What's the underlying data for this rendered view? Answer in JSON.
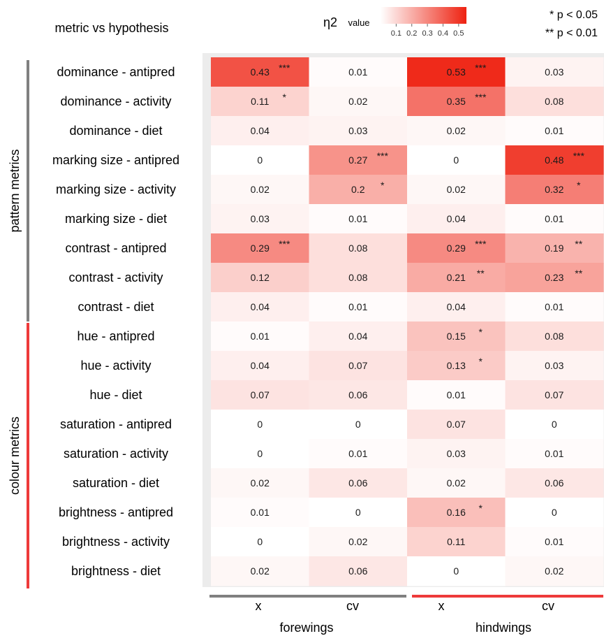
{
  "header": {
    "title": "metric vs hypothesis",
    "legend_symbol": "η2",
    "legend_label": "value",
    "sig_1": "* p < 0.05",
    "sig_2": "** p < 0.01"
  },
  "chart_data": {
    "type": "heatmap",
    "color_min": "#ffffff",
    "color_max": "#ee2211",
    "legend_ticks": [
      "0.1",
      "0.2",
      "0.3",
      "0.4",
      "0.5"
    ],
    "legend_range": [
      0,
      0.55
    ],
    "row_groups": [
      {
        "label": "pattern metrics",
        "color": "#808080",
        "rows": 9
      },
      {
        "label": "colour metrics",
        "color": "#ee3a3a",
        "rows": 9
      }
    ],
    "column_groups": [
      {
        "label": "forewings",
        "color": "#808080",
        "columns": [
          "x",
          "cv"
        ]
      },
      {
        "label": "hindwings",
        "color": "#ee3a3a",
        "columns": [
          "x",
          "cv"
        ]
      }
    ],
    "rows": [
      {
        "label": "dominance - antipred",
        "values": [
          0.43,
          0.01,
          0.53,
          0.03
        ],
        "labels": [
          "0.43",
          "0.01",
          "0.53",
          "0.03"
        ],
        "sig": [
          "***",
          "",
          "***",
          ""
        ]
      },
      {
        "label": "dominance - activity",
        "values": [
          0.11,
          0.02,
          0.35,
          0.08
        ],
        "labels": [
          "0.11",
          "0.02",
          "0.35",
          "0.08"
        ],
        "sig": [
          "*",
          "",
          "***",
          ""
        ]
      },
      {
        "label": "dominance - diet",
        "values": [
          0.04,
          0.03,
          0.02,
          0.01
        ],
        "labels": [
          "0.04",
          "0.03",
          "0.02",
          "0.01"
        ],
        "sig": [
          "",
          "",
          "",
          ""
        ]
      },
      {
        "label": "marking size - antipred",
        "values": [
          0,
          0.27,
          0,
          0.48
        ],
        "labels": [
          "0",
          "0.27",
          "0",
          "0.48"
        ],
        "sig": [
          "",
          "***",
          "",
          "***"
        ]
      },
      {
        "label": "marking size - activity",
        "values": [
          0.02,
          0.2,
          0.02,
          0.32
        ],
        "labels": [
          "0.02",
          "0.2",
          "0.02",
          "0.32"
        ],
        "sig": [
          "",
          "*",
          "",
          "*"
        ]
      },
      {
        "label": "marking size - diet",
        "values": [
          0.03,
          0.01,
          0.04,
          0.01
        ],
        "labels": [
          "0.03",
          "0.01",
          "0.04",
          "0.01"
        ],
        "sig": [
          "",
          "",
          "",
          ""
        ]
      },
      {
        "label": "contrast - antipred",
        "values": [
          0.29,
          0.08,
          0.29,
          0.19
        ],
        "labels": [
          "0.29",
          "0.08",
          "0.29",
          "0.19"
        ],
        "sig": [
          "***",
          "",
          "***",
          "**"
        ]
      },
      {
        "label": "contrast - activity",
        "values": [
          0.12,
          0.08,
          0.21,
          0.23
        ],
        "labels": [
          "0.12",
          "0.08",
          "0.21",
          "0.23"
        ],
        "sig": [
          "",
          "",
          "**",
          "**"
        ]
      },
      {
        "label": "contrast - diet",
        "values": [
          0.04,
          0.01,
          0.04,
          0.01
        ],
        "labels": [
          "0.04",
          "0.01",
          "0.04",
          "0.01"
        ],
        "sig": [
          "",
          "",
          "",
          ""
        ]
      },
      {
        "label": "hue - antipred",
        "values": [
          0.01,
          0.04,
          0.15,
          0.08
        ],
        "labels": [
          "0.01",
          "0.04",
          "0.15",
          "0.08"
        ],
        "sig": [
          "",
          "",
          "*",
          ""
        ]
      },
      {
        "label": "hue - activity",
        "values": [
          0.04,
          0.07,
          0.13,
          0.03
        ],
        "labels": [
          "0.04",
          "0.07",
          "0.13",
          "0.03"
        ],
        "sig": [
          "",
          "",
          "*",
          ""
        ]
      },
      {
        "label": "hue - diet",
        "values": [
          0.07,
          0.06,
          0.01,
          0.07
        ],
        "labels": [
          "0.07",
          "0.06",
          "0.01",
          "0.07"
        ],
        "sig": [
          "",
          "",
          "",
          ""
        ]
      },
      {
        "label": "saturation - antipred",
        "values": [
          0,
          0,
          0.07,
          0
        ],
        "labels": [
          "0",
          "0",
          "0.07",
          "0"
        ],
        "sig": [
          "",
          "",
          "",
          ""
        ]
      },
      {
        "label": "saturation - activity",
        "values": [
          0,
          0.01,
          0.03,
          0.01
        ],
        "labels": [
          "0",
          "0.01",
          "0.03",
          "0.01"
        ],
        "sig": [
          "",
          "",
          "",
          ""
        ]
      },
      {
        "label": "saturation - diet",
        "values": [
          0.02,
          0.06,
          0.02,
          0.06
        ],
        "labels": [
          "0.02",
          "0.06",
          "0.02",
          "0.06"
        ],
        "sig": [
          "",
          "",
          "",
          ""
        ]
      },
      {
        "label": "brightness - antipred",
        "values": [
          0.01,
          0,
          0.16,
          0
        ],
        "labels": [
          "0.01",
          "0",
          "0.16",
          "0"
        ],
        "sig": [
          "",
          "",
          "*",
          ""
        ]
      },
      {
        "label": "brightness - activity",
        "values": [
          0,
          0.02,
          0.11,
          0.01
        ],
        "labels": [
          "0",
          "0.02",
          "0.11",
          "0.01"
        ],
        "sig": [
          "",
          "",
          "",
          ""
        ]
      },
      {
        "label": "brightness - diet",
        "values": [
          0.02,
          0.06,
          0,
          0.02
        ],
        "labels": [
          "0.02",
          "0.06",
          "0",
          "0.02"
        ],
        "sig": [
          "",
          "",
          "",
          ""
        ]
      }
    ]
  }
}
